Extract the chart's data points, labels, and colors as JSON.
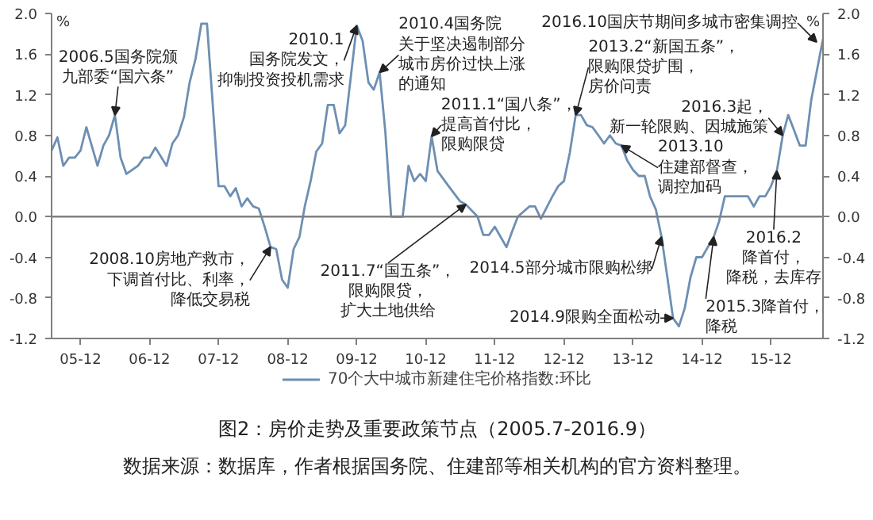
{
  "chart_data": {
    "type": "line",
    "title": "图2：房价走势及重要政策节点（2005.7-2016.9）",
    "ylabel": "%",
    "y2label": "%",
    "x": [
      "2005-07",
      "2005-08",
      "2005-09",
      "2005-10",
      "2005-11",
      "2005-12",
      "2006-01",
      "2006-03",
      "2006-04",
      "2006-05",
      "2006-06",
      "2006-07",
      "2006-08",
      "2006-10",
      "2006-11",
      "2006-12",
      "2007-01",
      "2007-03",
      "2007-04",
      "2007-05",
      "2007-06",
      "2007-07",
      "2007-08",
      "2007-09",
      "2007-10",
      "2007-12",
      "2008-01",
      "2008-02",
      "2008-03",
      "2008-04",
      "2008-05",
      "2008-06",
      "2008-07",
      "2008-08",
      "2008-09",
      "2008-10",
      "2008-11",
      "2008-12",
      "2009-01",
      "2009-02",
      "2009-03",
      "2009-04",
      "2009-05",
      "2009-06",
      "2009-07",
      "2009-08",
      "2009-09",
      "2009-10",
      "2009-12",
      "2010-01",
      "2010-02",
      "2010-03",
      "2010-04",
      "2010-05",
      "2010-06",
      "2010-08",
      "2010-09",
      "2010-10",
      "2010-11",
      "2010-12",
      "2011-01",
      "2011-02",
      "2011-04",
      "2011-06",
      "2011-07",
      "2011-09",
      "2011-10",
      "2011-11",
      "2011-12",
      "2012-02",
      "2012-03",
      "2012-04",
      "2012-06",
      "2012-07",
      "2012-08",
      "2012-10",
      "2012-11",
      "2012-12",
      "2013-01",
      "2013-02",
      "2013-03",
      "2013-04",
      "2013-05",
      "2013-06",
      "2013-07",
      "2013-08",
      "2013-09",
      "2013-10",
      "2013-11",
      "2013-12",
      "2014-01",
      "2014-02",
      "2014-03",
      "2014-04",
      "2014-05",
      "2014-06",
      "2014-07",
      "2014-08",
      "2014-09",
      "2014-10",
      "2014-11",
      "2014-12",
      "2015-02",
      "2015-03",
      "2015-04",
      "2015-08",
      "2015-09",
      "2015-10",
      "2015-11",
      "2015-12",
      "2016-01",
      "2016-02",
      "2016-03",
      "2016-04",
      "2016-05",
      "2016-06",
      "2016-07",
      "2016-08",
      "2016-09"
    ],
    "series": [
      {
        "name": "70个大中城市新建住宅价格指数:环比",
        "color": "#6d8fb3",
        "values": [
          0.65,
          0.78,
          0.5,
          0.58,
          0.58,
          0.65,
          0.88,
          0.5,
          0.7,
          0.8,
          1.0,
          0.58,
          0.42,
          0.5,
          0.58,
          0.58,
          0.68,
          0.5,
          0.72,
          0.8,
          0.98,
          1.32,
          1.55,
          1.9,
          1.9,
          0.3,
          0.3,
          0.2,
          0.28,
          0.1,
          0.18,
          0.1,
          0.08,
          -0.1,
          -0.3,
          -0.32,
          -0.62,
          -0.7,
          -0.32,
          -0.2,
          0.1,
          0.35,
          0.64,
          0.72,
          1.1,
          1.1,
          0.82,
          0.9,
          1.88,
          1.73,
          1.32,
          1.25,
          1.42,
          0.84,
          0.0,
          0.0,
          0.5,
          0.35,
          0.42,
          0.35,
          0.79,
          0.45,
          0.3,
          0.15,
          0.12,
          0.0,
          -0.18,
          -0.18,
          -0.1,
          -0.3,
          -0.15,
          0.0,
          0.1,
          0.1,
          -0.02,
          0.2,
          0.3,
          0.35,
          0.63,
          1.0,
          1.0,
          0.9,
          0.88,
          0.8,
          0.72,
          0.8,
          0.72,
          0.7,
          0.55,
          0.46,
          0.4,
          0.4,
          0.2,
          0.07,
          -0.2,
          -0.6,
          -1.0,
          -1.08,
          -0.9,
          -0.6,
          -0.4,
          -0.4,
          -0.2,
          -0.05,
          0.2,
          0.2,
          0.1,
          0.2,
          0.2,
          0.3,
          0.45,
          0.8,
          1.0,
          0.85,
          0.7,
          0.7,
          1.15,
          1.45,
          1.75
        ]
      }
    ],
    "xlim": [
      "2005-07",
      "2016-09"
    ],
    "xticks": [
      {
        "value": "2005-12",
        "label": "05-12"
      },
      {
        "value": "2006-12",
        "label": "06-12"
      },
      {
        "value": "2007-12",
        "label": "07-12"
      },
      {
        "value": "2008-12",
        "label": "08-12"
      },
      {
        "value": "2009-12",
        "label": "09-12"
      },
      {
        "value": "2010-12",
        "label": "10-12"
      },
      {
        "value": "2011-12",
        "label": "11-12"
      },
      {
        "value": "2012-12",
        "label": "12-12"
      },
      {
        "value": "2013-12",
        "label": "13-12"
      },
      {
        "value": "2014-12",
        "label": "14-12"
      },
      {
        "value": "2015-12",
        "label": "15-12"
      }
    ],
    "ylim": [
      -1.2,
      2.0
    ],
    "yticks": [
      {
        "value": -1.2,
        "label": "-1.2"
      },
      {
        "value": -0.8,
        "label": "-0.8"
      },
      {
        "value": -0.4,
        "label": "-0.4"
      },
      {
        "value": 0,
        "label": "0.0"
      },
      {
        "value": 0.4,
        "label": "0.4"
      },
      {
        "value": 0.8,
        "label": "0.8"
      },
      {
        "value": 1.2,
        "label": "1.2"
      },
      {
        "value": 1.6,
        "label": "1.6"
      },
      {
        "value": 2.0,
        "label": "2.0"
      }
    ],
    "y2lim": [
      -1.2,
      2.0
    ],
    "y2ticks": [
      {
        "value": -1.2,
        "label": "-1.2"
      },
      {
        "value": -0.8,
        "label": "-0.8"
      },
      {
        "value": -0.4,
        "label": "-0.4"
      },
      {
        "value": 0,
        "label": "0.0"
      },
      {
        "value": 0.4,
        "label": "0.4"
      },
      {
        "value": 0.8,
        "label": "0.8"
      },
      {
        "value": 1.2,
        "label": "1.2"
      },
      {
        "value": 1.6,
        "label": "1.6"
      },
      {
        "value": 2.0,
        "label": "2.0"
      }
    ],
    "ref_lines": [
      {
        "axis": "y",
        "value": 0,
        "color": "#808080"
      }
    ],
    "legend": "bottom",
    "annotations": [
      {
        "text": "2006.5国务院颁九部委“国六条”",
        "x": "2006-06",
        "y": 1.0
      },
      {
        "text": "2008.10房地产救市，下调首付比、利率，降低交易税",
        "x": "2008-09",
        "y": -0.3
      },
      {
        "text": "2010.1国务院发文，抑制投资投机需求",
        "x": "2009-12",
        "y": 1.88
      },
      {
        "text": "2010.4国务院关于坚决遏制部分城市房价过快上涨的通知",
        "x": "2010-04",
        "y": 1.42
      },
      {
        "text": "2011.1“国八条”，提高首付比，限购限贷",
        "x": "2011-01",
        "y": 0.79
      },
      {
        "text": "2011.7“国五条”，限购限贷，扩大土地供给",
        "x": "2011-07",
        "y": 0.12
      },
      {
        "text": "2013.2“新国五条”，限购限贷扩围，房价问责",
        "x": "2013-02",
        "y": 1.0
      },
      {
        "text": "2013.10住建部督查，调控加码",
        "x": "2013-10",
        "y": 0.7
      },
      {
        "text": "2014.5部分城市限购松绑",
        "x": "2014-05",
        "y": -0.2
      },
      {
        "text": "2014.9限购全面松动",
        "x": "2014-07",
        "y": -1.0
      },
      {
        "text": "2015.3降首付，降税",
        "x": "2015-02",
        "y": -0.2
      },
      {
        "text": "2016.2降首付，降税，去库存",
        "x": "2016-01",
        "y": 0.45
      },
      {
        "text": "2016.3起，新一轮限购、因城施策",
        "x": "2016-02",
        "y": 0.8
      },
      "2016.10国庆节期间多城市密集调控",
      "数据来源：数据库，作者根据国务院、住建部等相关机构的官方资料整理。"
    ]
  }
}
